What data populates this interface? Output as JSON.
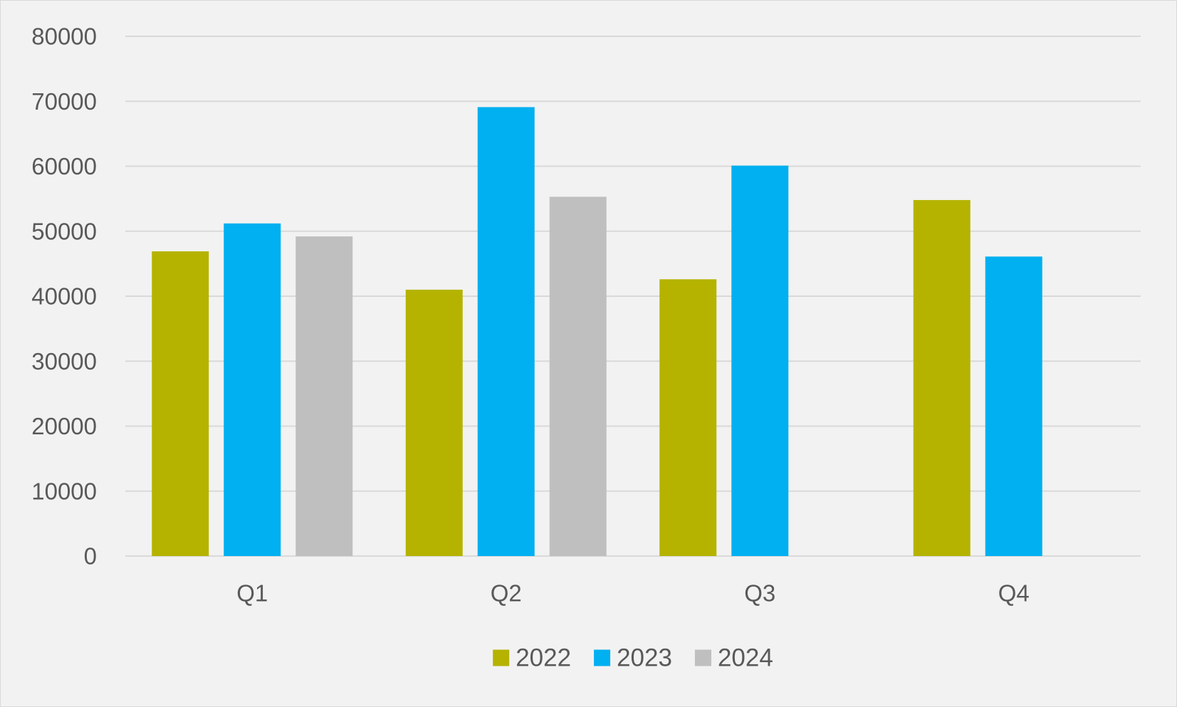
{
  "chart_data": {
    "type": "bar",
    "title": "",
    "xlabel": "",
    "ylabel": "",
    "categories": [
      "Q1",
      "Q2",
      "Q3",
      "Q4"
    ],
    "series": [
      {
        "name": "2022",
        "color": "#b5b300",
        "values": [
          46900,
          41000,
          42600,
          54800
        ]
      },
      {
        "name": "2023",
        "color": "#00b0f0",
        "values": [
          51200,
          69100,
          60100,
          46100
        ]
      },
      {
        "name": "2024",
        "color": "#bfbfbf",
        "values": [
          49200,
          55300,
          null,
          null
        ]
      }
    ],
    "ylim": [
      0,
      80000
    ],
    "yticks": [
      "0",
      "10000",
      "20000",
      "30000",
      "40000",
      "50000",
      "60000",
      "70000",
      "80000"
    ],
    "grid": true,
    "legend": "bottom",
    "colors": {
      "background": "#f2f2f2",
      "gridline": "#d9d9d9",
      "text": "#595959"
    }
  }
}
